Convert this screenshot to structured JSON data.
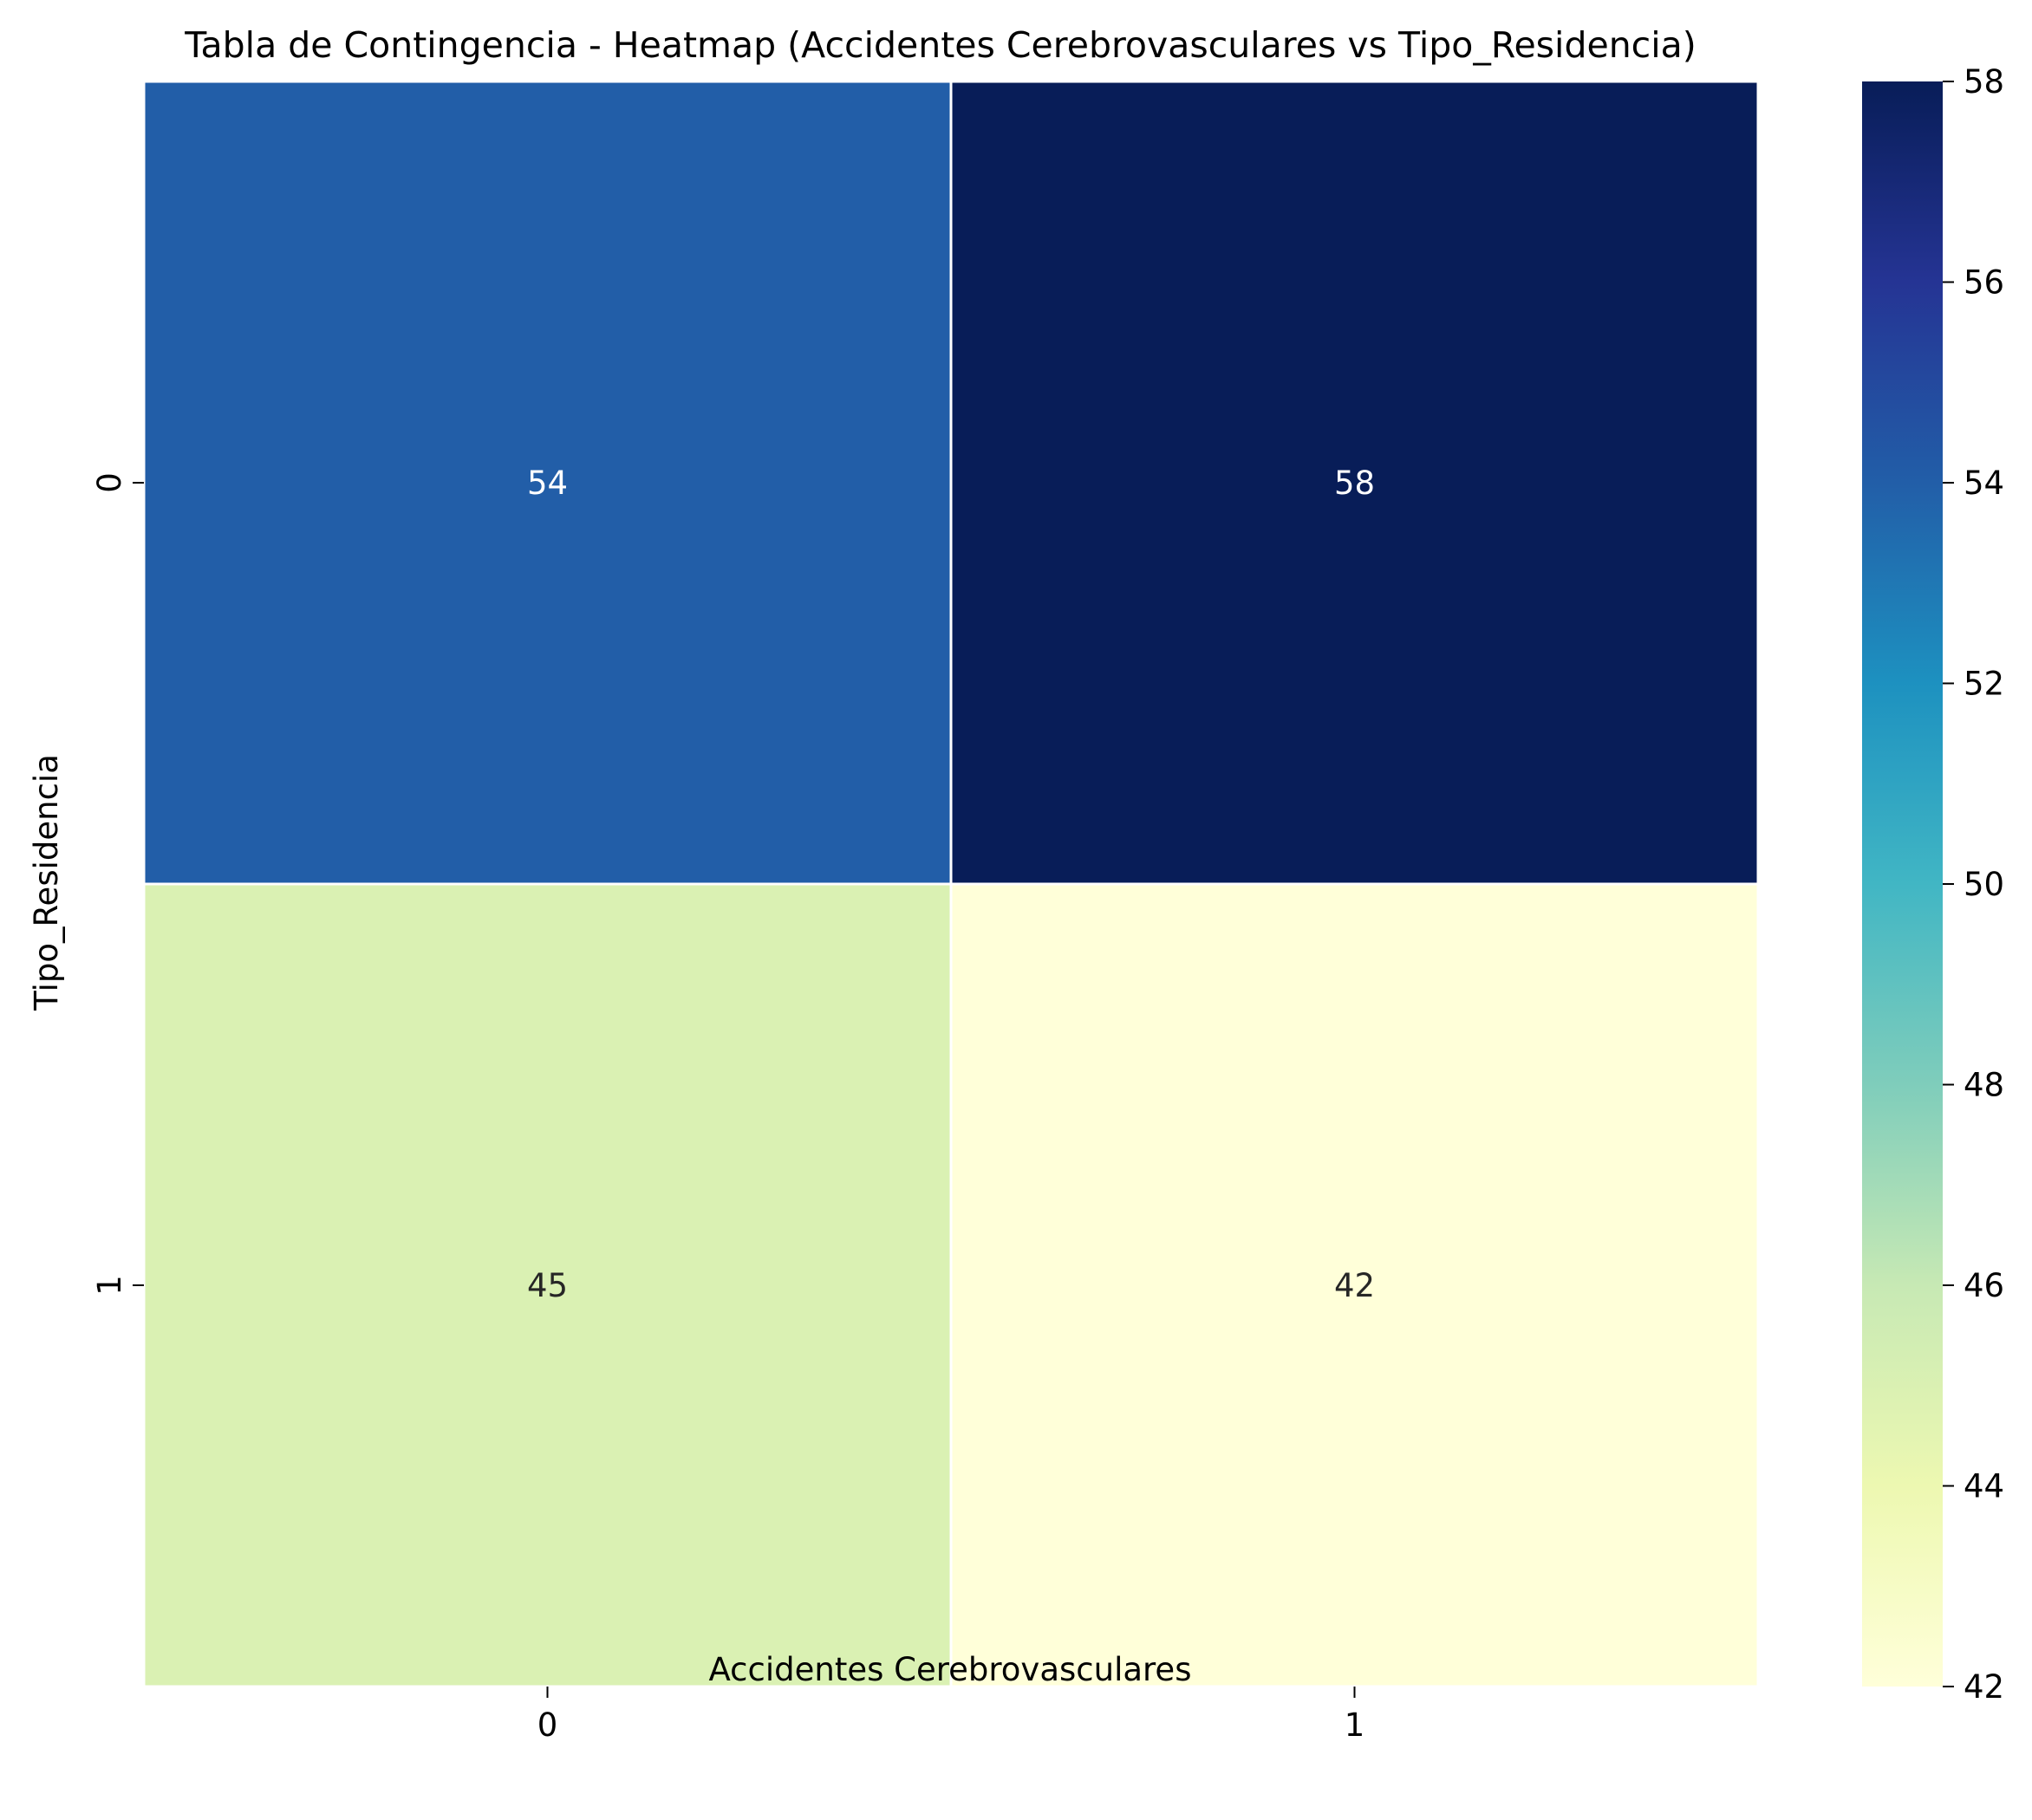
{
  "chart_data": {
    "type": "heatmap",
    "title": "Tabla de Contingencia - Heatmap (Accidentes Cerebrovasculares vs Tipo_Residencia)",
    "xlabel": "Accidentes Cerebrovasculares",
    "ylabel": "Tipo_Residencia",
    "x_categories": [
      "0",
      "1"
    ],
    "y_categories": [
      "0",
      "1"
    ],
    "values": [
      [
        54,
        58
      ],
      [
        45,
        42
      ]
    ],
    "colormap": "YlGnBu",
    "color_range": [
      42,
      58
    ],
    "colorbar_ticks": [
      42,
      44,
      46,
      48,
      50,
      52,
      54,
      56,
      58
    ],
    "annotations": true,
    "grid": false
  }
}
